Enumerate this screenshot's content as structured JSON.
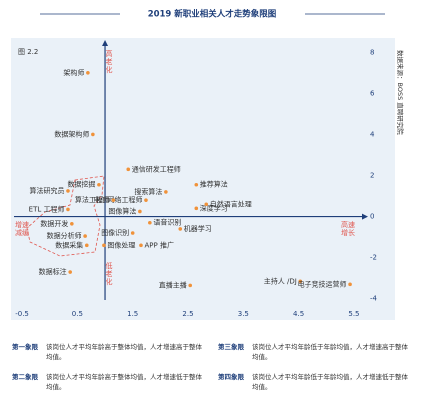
{
  "chart_data": {
    "type": "scatter",
    "title": "2019 新职业相关人才走势象限图",
    "figure_label": "图 2.2",
    "source": "数据来源：BOSS 直聘研究院",
    "annotations": {
      "top": "高老化",
      "bottom": "低老化",
      "right": "高速增长",
      "left": "增速减缓"
    },
    "labels": [
      "架构师",
      "数据架构师",
      "通信研发工程师",
      "数据挖掘",
      "搜索算法",
      "推荐算法",
      "算法研究员",
      "电信网络工程师",
      "算法工程师",
      "ETL 工程师",
      "图像算法",
      "深度学习",
      "自然语言处理",
      "数据开发",
      "语音识别",
      "机器学习",
      "数据分析师",
      "图像识别",
      "数据采集",
      "图像处理",
      "APP 推广",
      "数据标注",
      "直播主播",
      "主持人 /DJ",
      "电子竞技运营师"
    ],
    "x": [
      0.69,
      0.78,
      1.42,
      0.89,
      2.1,
      2.65,
      0.33,
      1.74,
      1.15,
      0.33,
      1.63,
      2.65,
      2.83,
      0.4,
      1.81,
      2.36,
      0.64,
      1.5,
      0.67,
      0.98,
      1.65,
      0.37,
      2.54,
      4.53,
      5.43
    ],
    "values": [
      7.0,
      4.0,
      2.3,
      1.55,
      1.2,
      1.55,
      1.25,
      0.8,
      0.8,
      0.35,
      0.25,
      0.4,
      0.6,
      -0.35,
      -0.3,
      -0.6,
      -0.95,
      -0.8,
      -1.4,
      -1.4,
      -1.4,
      -2.7,
      -3.35,
      -3.15,
      -3.3
    ],
    "color": "#f0923a",
    "xlim": [
      -0.7,
      5.7
    ],
    "xticks": [
      -0.5,
      0.5,
      1.5,
      2.5,
      3.5,
      4.5,
      5.5
    ],
    "ylim": [
      -4.5,
      8.5
    ],
    "yticks": [
      8,
      6,
      4,
      2,
      0,
      -2,
      -4
    ],
    "axis_cross": [
      1,
      0
    ]
  },
  "quadrant_notes": [
    {
      "name": "第一象限",
      "text": "该岗位人才平均年龄高于整体均值，人才增速高于整体均值。"
    },
    {
      "name": "第三象限",
      "text": "该岗位人才平均年龄低于年龄均值，人才增速高于整体均值。"
    },
    {
      "name": "第二象限",
      "text": "该岗位人才平均年龄高于整体均值，人才增速低于整体均值。"
    },
    {
      "name": "第四象限",
      "text": "该岗位人才平均年龄低于年龄均值，人才增速低于整体均值。"
    }
  ]
}
